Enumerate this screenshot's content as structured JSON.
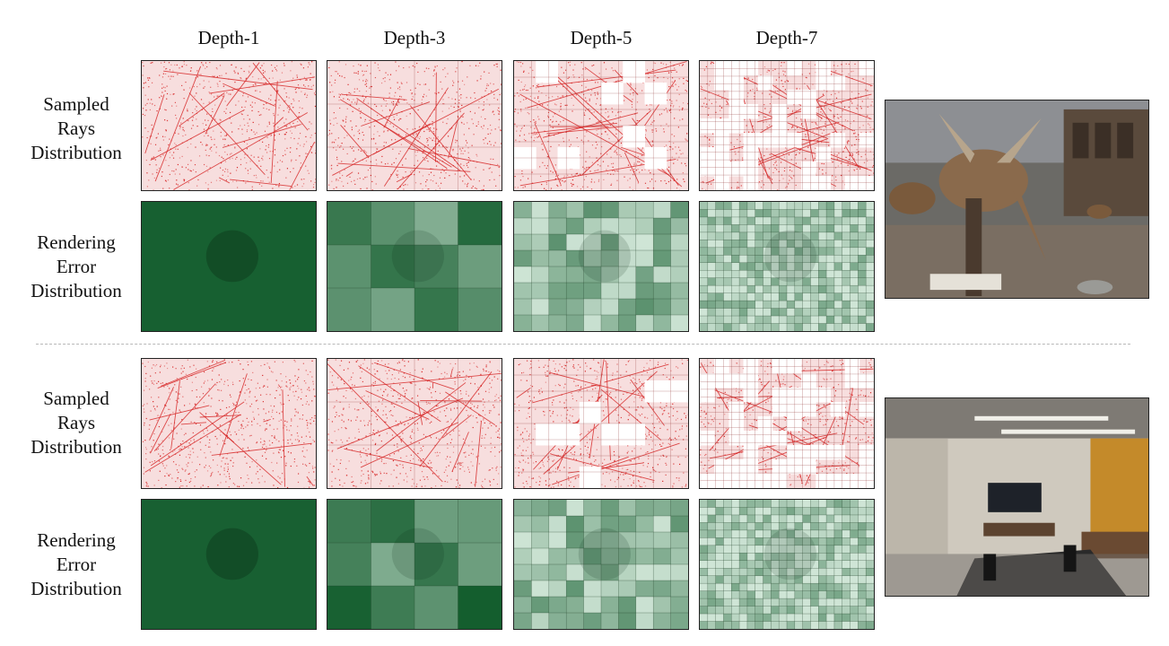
{
  "columns": [
    "Depth-1",
    "Depth-3",
    "Depth-5",
    "Depth-7"
  ],
  "labels": {
    "sampled": [
      "Sampled",
      "Rays",
      "Distribution"
    ],
    "error": [
      "Rendering",
      "Error",
      "Distribution"
    ]
  },
  "colors": {
    "ray": "#d62222",
    "error_dark": "#0f5a2a",
    "error_light": "#cfe5d6",
    "grid": "#1a3a22",
    "divider": "#b8b8b8"
  },
  "scenes": [
    {
      "photo_icon": "triceratops-photo",
      "hole_density": [
        0,
        0,
        0.1,
        0.45
      ]
    },
    {
      "photo_icon": "meeting-room-photo",
      "hole_density": [
        0,
        0,
        0.12,
        0.5
      ]
    }
  ]
}
